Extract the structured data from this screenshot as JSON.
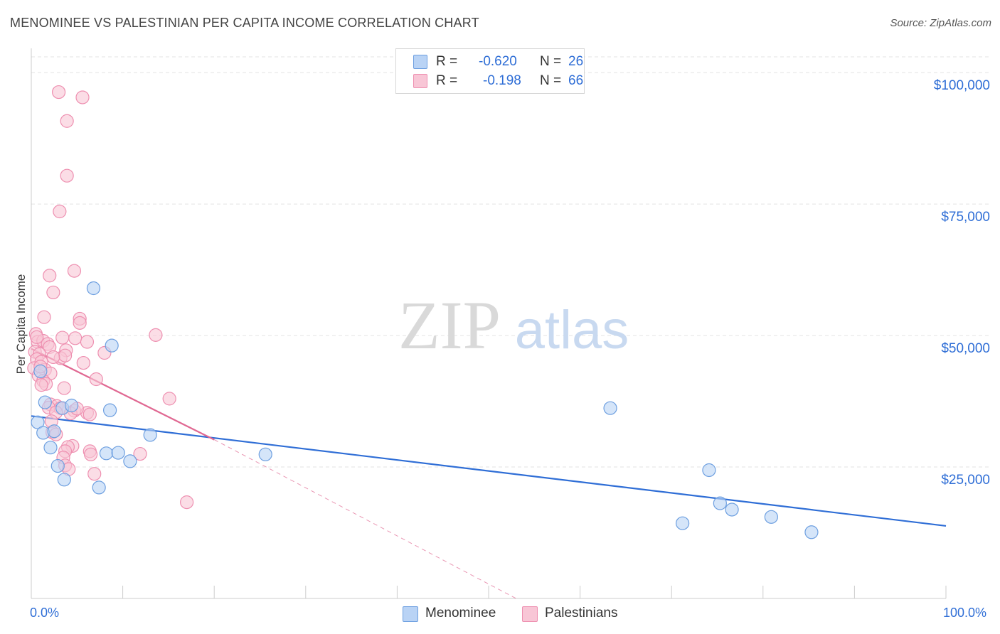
{
  "title": "MENOMINEE VS PALESTINIAN PER CAPITA INCOME CORRELATION CHART",
  "source": "Source: ZipAtlas.com",
  "colors": {
    "menominee_fill": "#b9d3f5",
    "menominee_stroke": "#6d9fe0",
    "menominee_line": "#2f6ed6",
    "palestinian_fill": "#f8c6d6",
    "palestinian_stroke": "#ee8fb0",
    "palestinian_line": "#e06892",
    "axis_label": "#2f6ed6",
    "grid": "#e3e3e3"
  },
  "legend": {
    "row1": {
      "r_label": "R =",
      "r_value": "-0.620",
      "n_label": "N =",
      "n_value": "26"
    },
    "row2": {
      "r_label": "R =",
      "r_value": "-0.198",
      "n_label": "N =",
      "n_value": "66"
    }
  },
  "bottom_legend": {
    "menominee": "Menominee",
    "palestinians": "Palestinians"
  },
  "watermark": {
    "zip": "ZIP",
    "atlas": "atlas"
  },
  "chart_data": {
    "type": "scatter",
    "title": "MENOMINEE VS PALESTINIAN PER CAPITA INCOME CORRELATION CHART",
    "xlabel": "",
    "ylabel": "Per Capita Income",
    "xlim": [
      0,
      100
    ],
    "ylim": [
      0,
      103000
    ],
    "x_tick_labels": [
      "0.0%",
      "100.0%"
    ],
    "y_ticks": [
      25000,
      50000,
      75000,
      100000
    ],
    "y_tick_labels": [
      "$25,000",
      "$50,000",
      "$75,000",
      "$100,000"
    ],
    "grid": true,
    "series": [
      {
        "name": "Menominee",
        "R": -0.62,
        "N": 26,
        "trend": {
          "x": [
            0,
            100
          ],
          "y": [
            34700,
            13800
          ],
          "dashed_to": null
        },
        "points": [
          {
            "x": 0.7,
            "y": 33500
          },
          {
            "x": 1.3,
            "y": 31500
          },
          {
            "x": 1.5,
            "y": 37300
          },
          {
            "x": 2.1,
            "y": 28700
          },
          {
            "x": 2.5,
            "y": 31800
          },
          {
            "x": 2.9,
            "y": 25200
          },
          {
            "x": 3.4,
            "y": 36200
          },
          {
            "x": 3.6,
            "y": 22600
          },
          {
            "x": 4.4,
            "y": 36700
          },
          {
            "x": 6.8,
            "y": 59000
          },
          {
            "x": 7.4,
            "y": 21100
          },
          {
            "x": 8.2,
            "y": 27600
          },
          {
            "x": 8.8,
            "y": 48100
          },
          {
            "x": 8.6,
            "y": 35800
          },
          {
            "x": 9.5,
            "y": 27700
          },
          {
            "x": 10.8,
            "y": 26100
          },
          {
            "x": 13.0,
            "y": 31100
          },
          {
            "x": 25.6,
            "y": 27400
          },
          {
            "x": 63.3,
            "y": 36200
          },
          {
            "x": 71.2,
            "y": 14300
          },
          {
            "x": 74.1,
            "y": 24400
          },
          {
            "x": 75.3,
            "y": 18100
          },
          {
            "x": 76.6,
            "y": 16900
          },
          {
            "x": 80.9,
            "y": 15500
          },
          {
            "x": 85.3,
            "y": 12600
          },
          {
            "x": 1.0,
            "y": 43200
          }
        ]
      },
      {
        "name": "Palestinians",
        "R": -0.198,
        "N": 66,
        "trend": {
          "x": [
            0,
            20
          ],
          "y": [
            47500,
            30200
          ],
          "dashed_to": {
            "x": 53,
            "y": 0
          }
        },
        "points": [
          {
            "x": 3.0,
            "y": 96300
          },
          {
            "x": 5.6,
            "y": 95300
          },
          {
            "x": 3.9,
            "y": 90800
          },
          {
            "x": 3.9,
            "y": 80400
          },
          {
            "x": 3.1,
            "y": 73600
          },
          {
            "x": 4.7,
            "y": 62300
          },
          {
            "x": 2.0,
            "y": 61400
          },
          {
            "x": 2.4,
            "y": 58200
          },
          {
            "x": 1.4,
            "y": 53500
          },
          {
            "x": 5.3,
            "y": 53200
          },
          {
            "x": 5.3,
            "y": 52400
          },
          {
            "x": 13.6,
            "y": 50100
          },
          {
            "x": 4.8,
            "y": 49500
          },
          {
            "x": 3.4,
            "y": 49600
          },
          {
            "x": 0.5,
            "y": 50300
          },
          {
            "x": 0.7,
            "y": 48800
          },
          {
            "x": 1.3,
            "y": 49000
          },
          {
            "x": 1.8,
            "y": 48400
          },
          {
            "x": 6.1,
            "y": 48800
          },
          {
            "x": 2.0,
            "y": 47800
          },
          {
            "x": 3.8,
            "y": 47200
          },
          {
            "x": 8.0,
            "y": 46700
          },
          {
            "x": 0.4,
            "y": 46900
          },
          {
            "x": 0.9,
            "y": 46500
          },
          {
            "x": 0.6,
            "y": 45500
          },
          {
            "x": 1.1,
            "y": 45000
          },
          {
            "x": 3.2,
            "y": 45700
          },
          {
            "x": 3.7,
            "y": 46200
          },
          {
            "x": 5.7,
            "y": 44800
          },
          {
            "x": 0.3,
            "y": 43800
          },
          {
            "x": 1.5,
            "y": 43500
          },
          {
            "x": 2.1,
            "y": 42800
          },
          {
            "x": 0.8,
            "y": 42400
          },
          {
            "x": 7.1,
            "y": 41700
          },
          {
            "x": 1.3,
            "y": 41400
          },
          {
            "x": 1.6,
            "y": 40800
          },
          {
            "x": 1.1,
            "y": 40600
          },
          {
            "x": 3.6,
            "y": 40000
          },
          {
            "x": 15.1,
            "y": 38000
          },
          {
            "x": 2.1,
            "y": 36900
          },
          {
            "x": 2.8,
            "y": 36600
          },
          {
            "x": 1.9,
            "y": 36300
          },
          {
            "x": 3.2,
            "y": 36200
          },
          {
            "x": 4.7,
            "y": 35700
          },
          {
            "x": 2.7,
            "y": 35400
          },
          {
            "x": 6.1,
            "y": 35300
          },
          {
            "x": 6.4,
            "y": 35000
          },
          {
            "x": 4.3,
            "y": 35200
          },
          {
            "x": 2.2,
            "y": 33700
          },
          {
            "x": 2.3,
            "y": 31600
          },
          {
            "x": 2.7,
            "y": 31200
          },
          {
            "x": 4.5,
            "y": 29000
          },
          {
            "x": 4.0,
            "y": 28800
          },
          {
            "x": 3.7,
            "y": 28000
          },
          {
            "x": 6.4,
            "y": 28000
          },
          {
            "x": 6.5,
            "y": 27400
          },
          {
            "x": 11.9,
            "y": 27500
          },
          {
            "x": 3.5,
            "y": 26800
          },
          {
            "x": 3.7,
            "y": 25300
          },
          {
            "x": 4.1,
            "y": 24600
          },
          {
            "x": 6.9,
            "y": 23700
          },
          {
            "x": 17.0,
            "y": 18300
          },
          {
            "x": 0.6,
            "y": 49700
          },
          {
            "x": 2.4,
            "y": 45900
          },
          {
            "x": 1.0,
            "y": 44100
          },
          {
            "x": 5.0,
            "y": 36100
          }
        ]
      }
    ]
  }
}
